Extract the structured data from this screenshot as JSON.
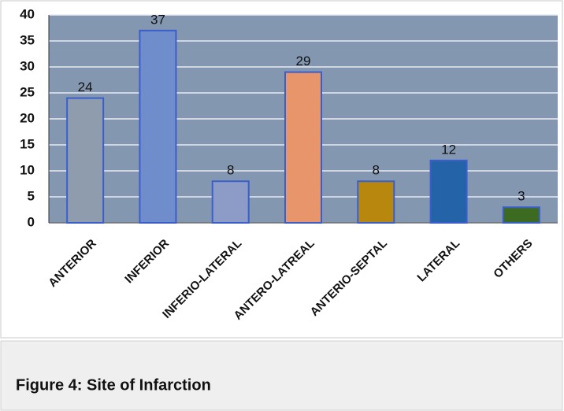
{
  "chart_data": {
    "type": "bar",
    "caption": "Figure 4: Site of Infarction",
    "categories": [
      "ANTERIOR",
      "INFERIOR",
      "INFERIO-LATERAL",
      "ANTERO-LATREAL",
      "ANTERIO-SEPTAL",
      "LATERAL",
      "OTHERS"
    ],
    "values": [
      24,
      37,
      8,
      29,
      8,
      12,
      3
    ],
    "colors": [
      "#8e9cad",
      "#6f8dcb",
      "#8c9cc6",
      "#e9956c",
      "#b8870e",
      "#2563a8",
      "#3c6a21"
    ],
    "ylim": [
      0,
      40
    ],
    "yticks": [
      0,
      5,
      10,
      15,
      20,
      25,
      30,
      35,
      40
    ],
    "grid": true
  }
}
